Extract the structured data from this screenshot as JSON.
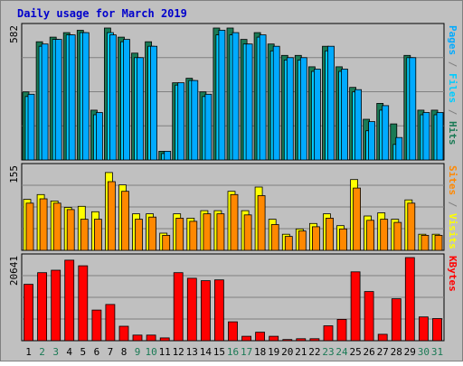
{
  "chart_data": {
    "type": "bar",
    "title": "Daily usage for March 2019",
    "days": [
      "1",
      "2",
      "3",
      "4",
      "5",
      "6",
      "7",
      "8",
      "9",
      "10",
      "11",
      "12",
      "13",
      "14",
      "15",
      "16",
      "17",
      "18",
      "19",
      "20",
      "21",
      "22",
      "23",
      "24",
      "25",
      "26",
      "27",
      "28",
      "29",
      "30",
      "31"
    ],
    "weekend_days": [
      "2",
      "3",
      "9",
      "10",
      "16",
      "17",
      "23",
      "24",
      "30",
      "31"
    ],
    "panels": [
      {
        "id": "hits",
        "axis_max_label": "582",
        "ymax": 582,
        "side_label_parts": [
          "Pages",
          " / ",
          "Files",
          " / ",
          "Hits"
        ],
        "series": [
          {
            "name": "Hits",
            "color": "#1a7a55",
            "values": [
              298,
              518,
              538,
              558,
              568,
              218,
              578,
              538,
              468,
              518,
              38,
              338,
              358,
              298,
              578,
              578,
              528,
              558,
              508,
              458,
              458,
              408,
              498,
              408,
              318,
              178,
              248,
              158,
              458,
              218,
              218
            ]
          },
          {
            "name": "Files",
            "color": "#00ccff",
            "values": [
              278,
              498,
              528,
              548,
              558,
              198,
              558,
              518,
              448,
              498,
              28,
              328,
              348,
              278,
              548,
              548,
              508,
              538,
              478,
              438,
              438,
              388,
              478,
              388,
              298,
              128,
              218,
              68,
              448,
              198,
              198
            ]
          },
          {
            "name": "Pages",
            "color": "#00aaff",
            "values": [
              288,
              508,
              528,
              548,
              558,
              208,
              548,
              528,
              448,
              498,
              38,
              338,
              348,
              288,
              568,
              558,
              508,
              548,
              498,
              448,
              448,
              398,
              498,
              398,
              308,
              168,
              238,
              98,
              448,
              208,
              208
            ]
          }
        ]
      },
      {
        "id": "visits",
        "axis_max_label": "155",
        "ymax": 155,
        "side_label_parts": [
          "Sites",
          " / ",
          "Visits"
        ],
        "series": [
          {
            "name": "Visits",
            "color": "#ffff00",
            "values": [
              95,
              104,
              92,
              80,
              82,
              72,
              145,
              122,
              68,
              68,
              32,
              68,
              60,
              74,
              74,
              110,
              74,
              118,
              58,
              30,
              40,
              50,
              68,
              46,
              132,
              64,
              70,
              58,
              94,
              30,
              30
            ]
          },
          {
            "name": "Sites",
            "color": "#ff8800",
            "values": [
              88,
              96,
              88,
              76,
              58,
              58,
              128,
              110,
              58,
              62,
              28,
              60,
              54,
              68,
              68,
              104,
              66,
              102,
              48,
              26,
              36,
              44,
              60,
              40,
              116,
              56,
              58,
              52,
              88,
              28,
              28
            ]
          }
        ]
      },
      {
        "id": "kbytes",
        "axis_max_label": "20641",
        "ymax": 20641,
        "side_label_parts": [
          "KBytes"
        ],
        "series": [
          {
            "name": "KBytes",
            "color": "#ff0000",
            "values": [
              14000,
              16900,
              17500,
              20000,
              18600,
              7600,
              9000,
              3600,
              1400,
              1400,
              700,
              16900,
              15500,
              14900,
              15100,
              4700,
              1100,
              2100,
              1100,
              300,
              500,
              500,
              3700,
              5300,
              17100,
              12200,
              1600,
              10400,
              20641,
              5900,
              5500
            ]
          }
        ]
      }
    ]
  }
}
